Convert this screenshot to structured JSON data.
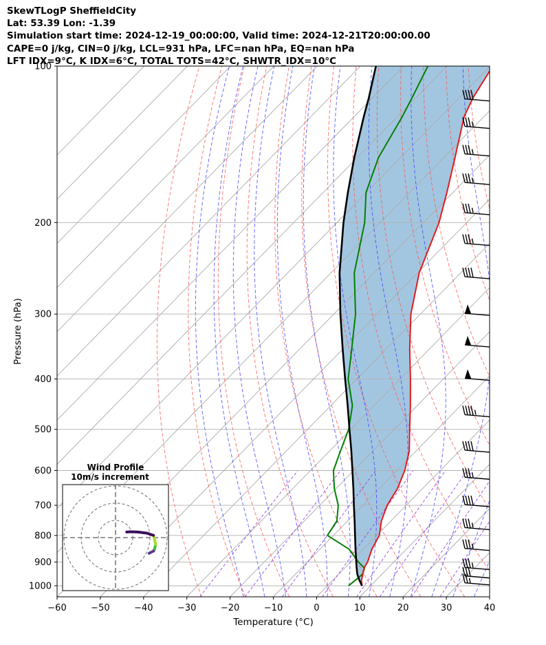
{
  "header": {
    "lines": [
      "SkewTLogP SheffieldCity",
      "Lat: 53.39   Lon: -1.39",
      "Simulation start time: 2024-12-19_00:00:00, Valid time: 2024-12-21T20:00:00.00",
      "CAPE=0 j/kg, CIN=0 j/kg, LCL=931 hPa, LFC=nan hPa, EQ=nan hPa",
      "LFT IDX=9°C, K IDX=6°C, TOTAL TOTS=42°C, SHWTR_IDX=10°C"
    ]
  },
  "chart_data": {
    "type": "skewt",
    "xlabel": "Temperature (°C)",
    "ylabel": "Pressure (hPa)",
    "xlim": [
      -60,
      40
    ],
    "ylim": [
      1050,
      100
    ],
    "x_ticks": [
      -60,
      -50,
      -40,
      -30,
      -20,
      -10,
      0,
      10,
      20,
      30,
      40
    ],
    "x_tick_labels": [
      "−60",
      "−50",
      "−40",
      "−30",
      "−20",
      "−10",
      "0",
      "10",
      "20",
      "30",
      "40"
    ],
    "y_ticks": [
      1000,
      900,
      800,
      700,
      600,
      500,
      400,
      300,
      200,
      100
    ],
    "y_tick_labels": [
      "1000",
      "900",
      "800",
      "700",
      "600",
      "500",
      "400",
      "300",
      "200",
      "100"
    ],
    "colors": {
      "temperature": "#e31a1c",
      "dewpoint": "#008000",
      "parcel": "#000000",
      "cape_fill": "#7fb0d4",
      "dry_adiabat": "#ff4d4d",
      "moist_adiabat": "#3a3aff",
      "mixing_ratio": "#8a2be2",
      "isotherm": "#aaaaaa"
    },
    "temperature": {
      "p": [
        1000,
        975,
        950,
        925,
        900,
        850,
        800,
        750,
        700,
        650,
        600,
        550,
        500,
        450,
        400,
        350,
        300,
        250,
        200,
        175,
        150,
        125,
        115,
        100
      ],
      "t": [
        8.0,
        6.6,
        5.6,
        4.5,
        3.9,
        2.0,
        0.6,
        -2.2,
        -4.4,
        -5.8,
        -8.2,
        -11.6,
        -16.4,
        -21.6,
        -27.6,
        -34.6,
        -42.2,
        -49.6,
        -56.4,
        -61.4,
        -67.4,
        -74.6,
        -76.8,
        -79.4
      ]
    },
    "dewpoint": {
      "p": [
        1000,
        975,
        950,
        925,
        900,
        850,
        800,
        750,
        700,
        650,
        600,
        550,
        500,
        450,
        400,
        350,
        300,
        250,
        200,
        175,
        150,
        125,
        115,
        100
      ],
      "td": [
        4.9,
        5.2,
        5.5,
        4.6,
        1.8,
        -3.3,
        -11.4,
        -12.5,
        -15.7,
        -20.4,
        -24.7,
        -27.5,
        -30.5,
        -35.0,
        -42.0,
        -48.0,
        -55.0,
        -64.6,
        -73.6,
        -80.1,
        -85.1,
        -88.9,
        -90.9,
        -94.4
      ]
    },
    "parcel": {
      "p": [
        1000,
        975,
        950,
        925,
        900,
        850,
        800,
        750,
        700,
        650,
        600,
        550,
        500,
        450,
        400,
        350,
        300,
        250,
        200,
        175,
        150,
        125,
        115,
        100
      ],
      "t": [
        8.0,
        6.1,
        4.3,
        2.8,
        1.3,
        -1.8,
        -5.0,
        -8.4,
        -12.1,
        -16.0,
        -20.3,
        -25.0,
        -30.3,
        -36.1,
        -42.7,
        -50.1,
        -58.5,
        -68.0,
        -78.5,
        -84.3,
        -90.7,
        -97.8,
        -100.9,
        -106.4
      ]
    },
    "wind_barbs": [
      {
        "p": 990,
        "speed_kt": 25
      },
      {
        "p": 960,
        "speed_kt": 30
      },
      {
        "p": 925,
        "speed_kt": 35
      },
      {
        "p": 850,
        "speed_kt": 35
      },
      {
        "p": 775,
        "speed_kt": 35
      },
      {
        "p": 700,
        "speed_kt": 40
      },
      {
        "p": 620,
        "speed_kt": 35
      },
      {
        "p": 550,
        "speed_kt": 40
      },
      {
        "p": 470,
        "speed_kt": 45
      },
      {
        "p": 400,
        "speed_kt": 50
      },
      {
        "p": 345,
        "speed_kt": 50
      },
      {
        "p": 300,
        "speed_kt": 50
      },
      {
        "p": 255,
        "speed_kt": 40
      },
      {
        "p": 220,
        "speed_kt": 35
      },
      {
        "p": 192,
        "speed_kt": 35
      },
      {
        "p": 168,
        "speed_kt": 35
      },
      {
        "p": 148,
        "speed_kt": 35
      },
      {
        "p": 131,
        "speed_kt": 35
      },
      {
        "p": 116,
        "speed_kt": 40
      }
    ],
    "hodograph": {
      "title_line1": "Wind Profile",
      "title_line2": "10m/s increment",
      "ring_step_ms": 10,
      "points": [
        {
          "u": 15,
          "v": -7,
          "color": "#5c3a8a"
        },
        {
          "u": 17,
          "v": -6,
          "color": "#5c3a8a"
        },
        {
          "u": 17.5,
          "v": -5,
          "color": "#4cbe3a"
        },
        {
          "u": 18,
          "v": -3,
          "color": "#a2dc2a"
        },
        {
          "u": 17,
          "v": 1,
          "color": "#3a0f5a"
        },
        {
          "u": 14,
          "v": 2,
          "color": "#3a0f5a"
        },
        {
          "u": 10,
          "v": 2.5,
          "color": "#3a0f5a"
        },
        {
          "u": 7,
          "v": 2.6,
          "color": "#3a0f5a"
        },
        {
          "u": 5,
          "v": 2.5,
          "color": "#3a0f5a"
        }
      ]
    }
  }
}
